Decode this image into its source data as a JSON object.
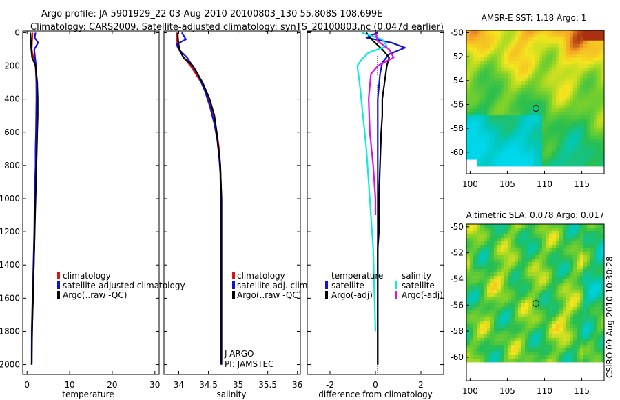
{
  "header": {
    "line1": "Argo profile: JA 5901929_22 03-Aug-2010 20100803_130 55.808S 108.699E",
    "line2": "Climatology: CARS2009. Satellite-adjusted climatology: synTS_20100803.nc (0.047d earlier)"
  },
  "side_text": "CSIRO 09-Aug-2010 10:30:28",
  "colors": {
    "red": "#e01010",
    "blue": "#1010e0",
    "black": "#000000",
    "cyan": "#10e8e8",
    "magenta": "#e010e0"
  },
  "chart_data": [
    {
      "type": "line",
      "xlabel": "temperature",
      "xlim": [
        -1,
        31
      ],
      "ylim": [
        2060,
        -10
      ],
      "xticks": [
        0,
        10,
        20,
        30
      ],
      "yticks": [
        0,
        200,
        400,
        600,
        800,
        1000,
        1200,
        1400,
        1600,
        1800,
        2000
      ],
      "series": [
        {
          "name": "climatology",
          "color": "red",
          "x": [
            1.3,
            1.2,
            1.1,
            1.5,
            2.0,
            2.2,
            2.3,
            2.3,
            2.3,
            2.2,
            2.1,
            2.0,
            1.9,
            1.8,
            1.7,
            1.6,
            1.5,
            1.4,
            1.3,
            1.2,
            1.1,
            1.1
          ],
          "y": [
            0,
            50,
            100,
            150,
            200,
            300,
            400,
            500,
            600,
            700,
            800,
            900,
            1000,
            1200,
            1300,
            1400,
            1500,
            1600,
            1700,
            1800,
            1900,
            2000
          ]
        },
        {
          "name": "satellite-adjusted climatology",
          "color": "blue",
          "x": [
            2.0,
            1.8,
            2.6,
            1.7,
            1.9,
            2.1,
            2.2,
            2.2,
            2.1,
            2.0,
            2.0,
            1.9,
            1.8,
            1.7,
            1.6,
            1.5,
            1.4,
            1.3,
            1.2,
            1.1,
            1.1
          ],
          "y": [
            0,
            30,
            60,
            100,
            150,
            200,
            300,
            400,
            600,
            700,
            800,
            900,
            1000,
            1200,
            1300,
            1400,
            1500,
            1600,
            1700,
            1800,
            2000
          ]
        },
        {
          "name": "Argo(..raw -QC)",
          "color": "black",
          "x": [
            0.8,
            0.9,
            1.0,
            1.2,
            2.0,
            2.4,
            2.5,
            2.5,
            2.4,
            2.3,
            2.2,
            2.1,
            2.0,
            1.9,
            1.8,
            1.7,
            1.6,
            1.5,
            1.4,
            1.3,
            1.2,
            1.1
          ],
          "y": [
            0,
            50,
            100,
            150,
            200,
            300,
            400,
            500,
            600,
            700,
            800,
            900,
            1000,
            1100,
            1200,
            1300,
            1400,
            1500,
            1600,
            1700,
            1800,
            2000
          ]
        }
      ],
      "legend": [
        "climatology",
        "satellite-adjusted climatology",
        "Argo(..raw -QC)"
      ]
    },
    {
      "type": "line",
      "xlabel": "salinity",
      "xlim": [
        33.75,
        36.05
      ],
      "ylim": [
        2060,
        -10
      ],
      "xticks": [
        34,
        34.5,
        35,
        35.5,
        36
      ],
      "xticklabels": [
        "34",
        "34.5",
        "35",
        "35.5",
        "36"
      ],
      "series": [
        {
          "name": "climatology",
          "color": "red",
          "x": [
            33.96,
            33.97,
            34.0,
            34.08,
            34.2,
            34.38,
            34.5,
            34.58,
            34.64,
            34.68,
            34.7,
            34.71,
            34.72,
            34.72,
            34.72,
            34.72
          ],
          "y": [
            0,
            50,
            100,
            150,
            200,
            300,
            400,
            500,
            600,
            700,
            800,
            900,
            1000,
            1400,
            1800,
            2000
          ]
        },
        {
          "name": "satellite adj. clim.",
          "color": "blue",
          "x": [
            34.05,
            34.12,
            33.96,
            34.0,
            34.14,
            34.32,
            34.44,
            34.53,
            34.6,
            34.65,
            34.68,
            34.7,
            34.71,
            34.71,
            34.71
          ],
          "y": [
            0,
            40,
            70,
            100,
            150,
            250,
            350,
            450,
            550,
            650,
            750,
            850,
            1000,
            1400,
            2000
          ]
        },
        {
          "name": "Argo(..raw -QC)",
          "color": "black",
          "x": [
            33.98,
            33.99,
            34.01,
            34.08,
            34.24,
            34.4,
            34.52,
            34.6,
            34.64,
            34.67,
            34.7,
            34.71,
            34.72,
            34.72,
            34.72
          ],
          "y": [
            0,
            50,
            100,
            150,
            200,
            300,
            400,
            500,
            600,
            700,
            800,
            900,
            1000,
            1400,
            2000
          ]
        }
      ],
      "legend": [
        "climatology",
        "satellite adj. clim.",
        "Argo(..raw -QC)"
      ],
      "annotation": [
        "J-ARGO",
        "PI: JAMSTEC"
      ]
    },
    {
      "type": "line",
      "xlabel": "difference from climatology",
      "xlim": [
        -3,
        3
      ],
      "ylim": [
        2060,
        -10
      ],
      "xticks": [
        -2,
        0,
        2
      ],
      "series": [
        {
          "name": "temperature satellite",
          "color": "blue",
          "x": [
            0.1,
            -0.4,
            0.7,
            1.3,
            0.6,
            0.3,
            0.2,
            0.1,
            0.1,
            0.1,
            0.1,
            0.1,
            0.1,
            0.1,
            0.1,
            0.1,
            0.1,
            0.1,
            0.1
          ],
          "y": [
            0,
            30,
            60,
            90,
            130,
            180,
            250,
            400,
            600,
            800,
            1000,
            1200,
            1300,
            1400,
            1500,
            1600,
            1700,
            1800,
            2000
          ]
        },
        {
          "name": "temperature Argo(-adj)",
          "color": "black",
          "x": [
            -0.4,
            -0.1,
            0.3,
            0.6,
            0.5,
            0.4,
            0.3,
            0.3,
            0.25,
            0.2,
            0.15,
            0.15,
            0.1,
            0.1,
            0.1,
            0.1
          ],
          "y": [
            0,
            50,
            100,
            150,
            200,
            300,
            400,
            500,
            600,
            800,
            1000,
            1200,
            1300,
            1400,
            1600,
            2000
          ]
        },
        {
          "name": "salinity satellite",
          "color": "cyan",
          "x": [
            -0.6,
            0.3,
            0.5,
            -0.3,
            -0.6,
            -0.8,
            -0.7,
            -0.55,
            -0.4,
            -0.3,
            -0.2,
            -0.1,
            0.0
          ],
          "y": [
            0,
            40,
            80,
            120,
            160,
            200,
            300,
            500,
            700,
            900,
            1100,
            1300,
            1800
          ]
        },
        {
          "name": "salinity Argo(-adj)",
          "color": "magenta",
          "x": [
            0.0,
            0.1,
            0.6,
            0.8,
            0.1,
            -0.2,
            -0.3,
            -0.25,
            -0.1,
            0.0,
            0.0
          ],
          "y": [
            0,
            50,
            100,
            150,
            200,
            250,
            400,
            600,
            800,
            1000,
            1100
          ]
        }
      ],
      "legend_groups": [
        {
          "title": "temperature",
          "items": [
            "satellite",
            "Argo(-adj)"
          ]
        },
        {
          "title": "salinity",
          "items": [
            "satellite",
            "Argo(-adj)"
          ]
        }
      ]
    },
    {
      "type": "heatmap",
      "title": "AMSR-E SST: 1.18 Argo: 1",
      "xlim": [
        99.5,
        118
      ],
      "ylim": [
        -61.8,
        -49.8
      ],
      "xticks": [
        100,
        105,
        110,
        115
      ],
      "yticks": [
        -50,
        -52,
        -54,
        -56,
        -58,
        -60
      ],
      "marker": {
        "lon": 108.699,
        "lat": -55.808
      }
    },
    {
      "type": "heatmap",
      "title": "Altimetric SLA: 0.078 Argo: 0.017",
      "xlim": [
        99.5,
        118
      ],
      "ylim": [
        -61.8,
        -49.8
      ],
      "xticks": [
        100,
        105,
        110,
        115
      ],
      "yticks": [
        -50,
        -52,
        -54,
        -56,
        -58,
        -60
      ],
      "marker": {
        "lon": 108.699,
        "lat": -55.808
      }
    }
  ]
}
